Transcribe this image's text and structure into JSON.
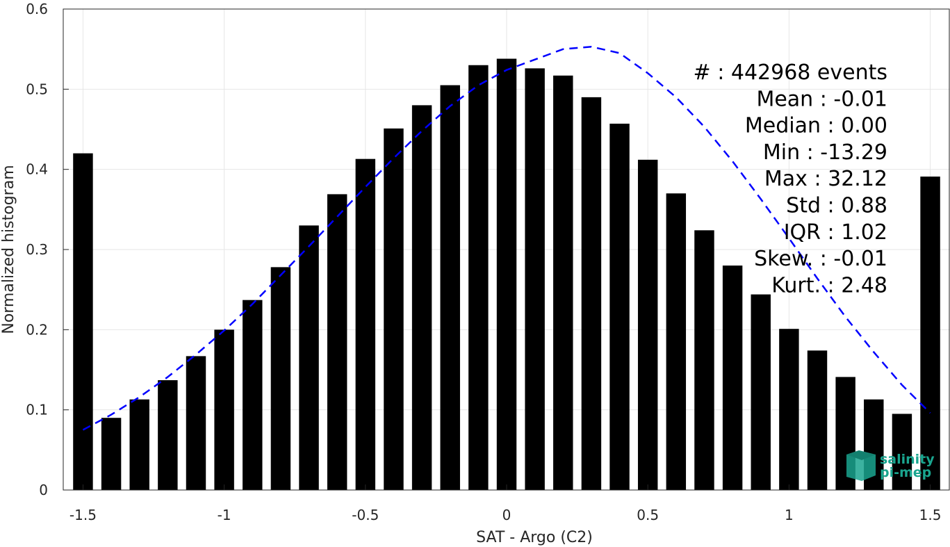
{
  "chart_data": {
    "type": "bar",
    "xlabel": "SAT - Argo (C2)",
    "ylabel": "Normalized histogram",
    "xlim": [
      -1.57,
      1.57
    ],
    "ylim": [
      0,
      0.6
    ],
    "xticks": [
      -1.5,
      -1,
      -0.5,
      0,
      0.5,
      1,
      1.5
    ],
    "xtick_labels": [
      "-1.5",
      "-1",
      "-0.5",
      "0",
      "0.5",
      "1",
      "1.5"
    ],
    "yticks": [
      0,
      0.1,
      0.2,
      0.3,
      0.4,
      0.5,
      0.6
    ],
    "ytick_labels": [
      "0",
      "0.1",
      "0.2",
      "0.3",
      "0.4",
      "0.5",
      "0.6"
    ],
    "grid": true,
    "bar_color": "#000000",
    "fit_color": "#0000ff",
    "series": [
      {
        "kind": "bar",
        "x": [
          -1.5,
          -1.4,
          -1.3,
          -1.2,
          -1.1,
          -1.0,
          -0.9,
          -0.8,
          -0.7,
          -0.6,
          -0.5,
          -0.4,
          -0.3,
          -0.2,
          -0.1,
          0.0,
          0.1,
          0.2,
          0.3,
          0.4,
          0.5,
          0.6,
          0.7,
          0.8,
          0.9,
          1.0,
          1.1,
          1.2,
          1.3,
          1.4,
          1.5
        ],
        "values": [
          0.42,
          0.09,
          0.113,
          0.137,
          0.167,
          0.2,
          0.237,
          0.278,
          0.33,
          0.369,
          0.413,
          0.451,
          0.48,
          0.505,
          0.53,
          0.538,
          0.526,
          0.517,
          0.49,
          0.457,
          0.412,
          0.37,
          0.324,
          0.28,
          0.244,
          0.201,
          0.174,
          0.141,
          0.113,
          0.095,
          0.391
        ]
      },
      {
        "kind": "line",
        "style": "dashed",
        "x": [
          -1.5,
          -1.4,
          -1.3,
          -1.2,
          -1.1,
          -1.0,
          -0.9,
          -0.8,
          -0.7,
          -0.6,
          -0.5,
          -0.4,
          -0.3,
          -0.2,
          -0.1,
          0.0,
          0.1,
          0.2,
          0.3,
          0.4,
          0.5,
          0.6,
          0.7,
          0.8,
          0.9,
          1.0,
          1.1,
          1.2,
          1.3,
          1.4,
          1.5
        ],
        "values": [
          0.075,
          0.094,
          0.116,
          0.141,
          0.169,
          0.199,
          0.232,
          0.268,
          0.304,
          0.341,
          0.378,
          0.414,
          0.448,
          0.479,
          0.505,
          0.524,
          0.537,
          0.55,
          0.553,
          0.545,
          0.52,
          0.49,
          0.453,
          0.41,
          0.363,
          0.314,
          0.264,
          0.216,
          0.172,
          0.131,
          0.096
        ]
      }
    ],
    "annotations": [
      "#  : 442968 events",
      "Mean : -0.01",
      "Median : 0.00",
      "Min : -13.29",
      "Max : 32.12",
      "Std : 0.88",
      "IQR : 1.02",
      "Skew. : -0.01",
      "Kurt. : 2.48"
    ]
  },
  "logo": {
    "line1": "salinity",
    "line2": "pi-mep",
    "color": "#1aa58f"
  }
}
